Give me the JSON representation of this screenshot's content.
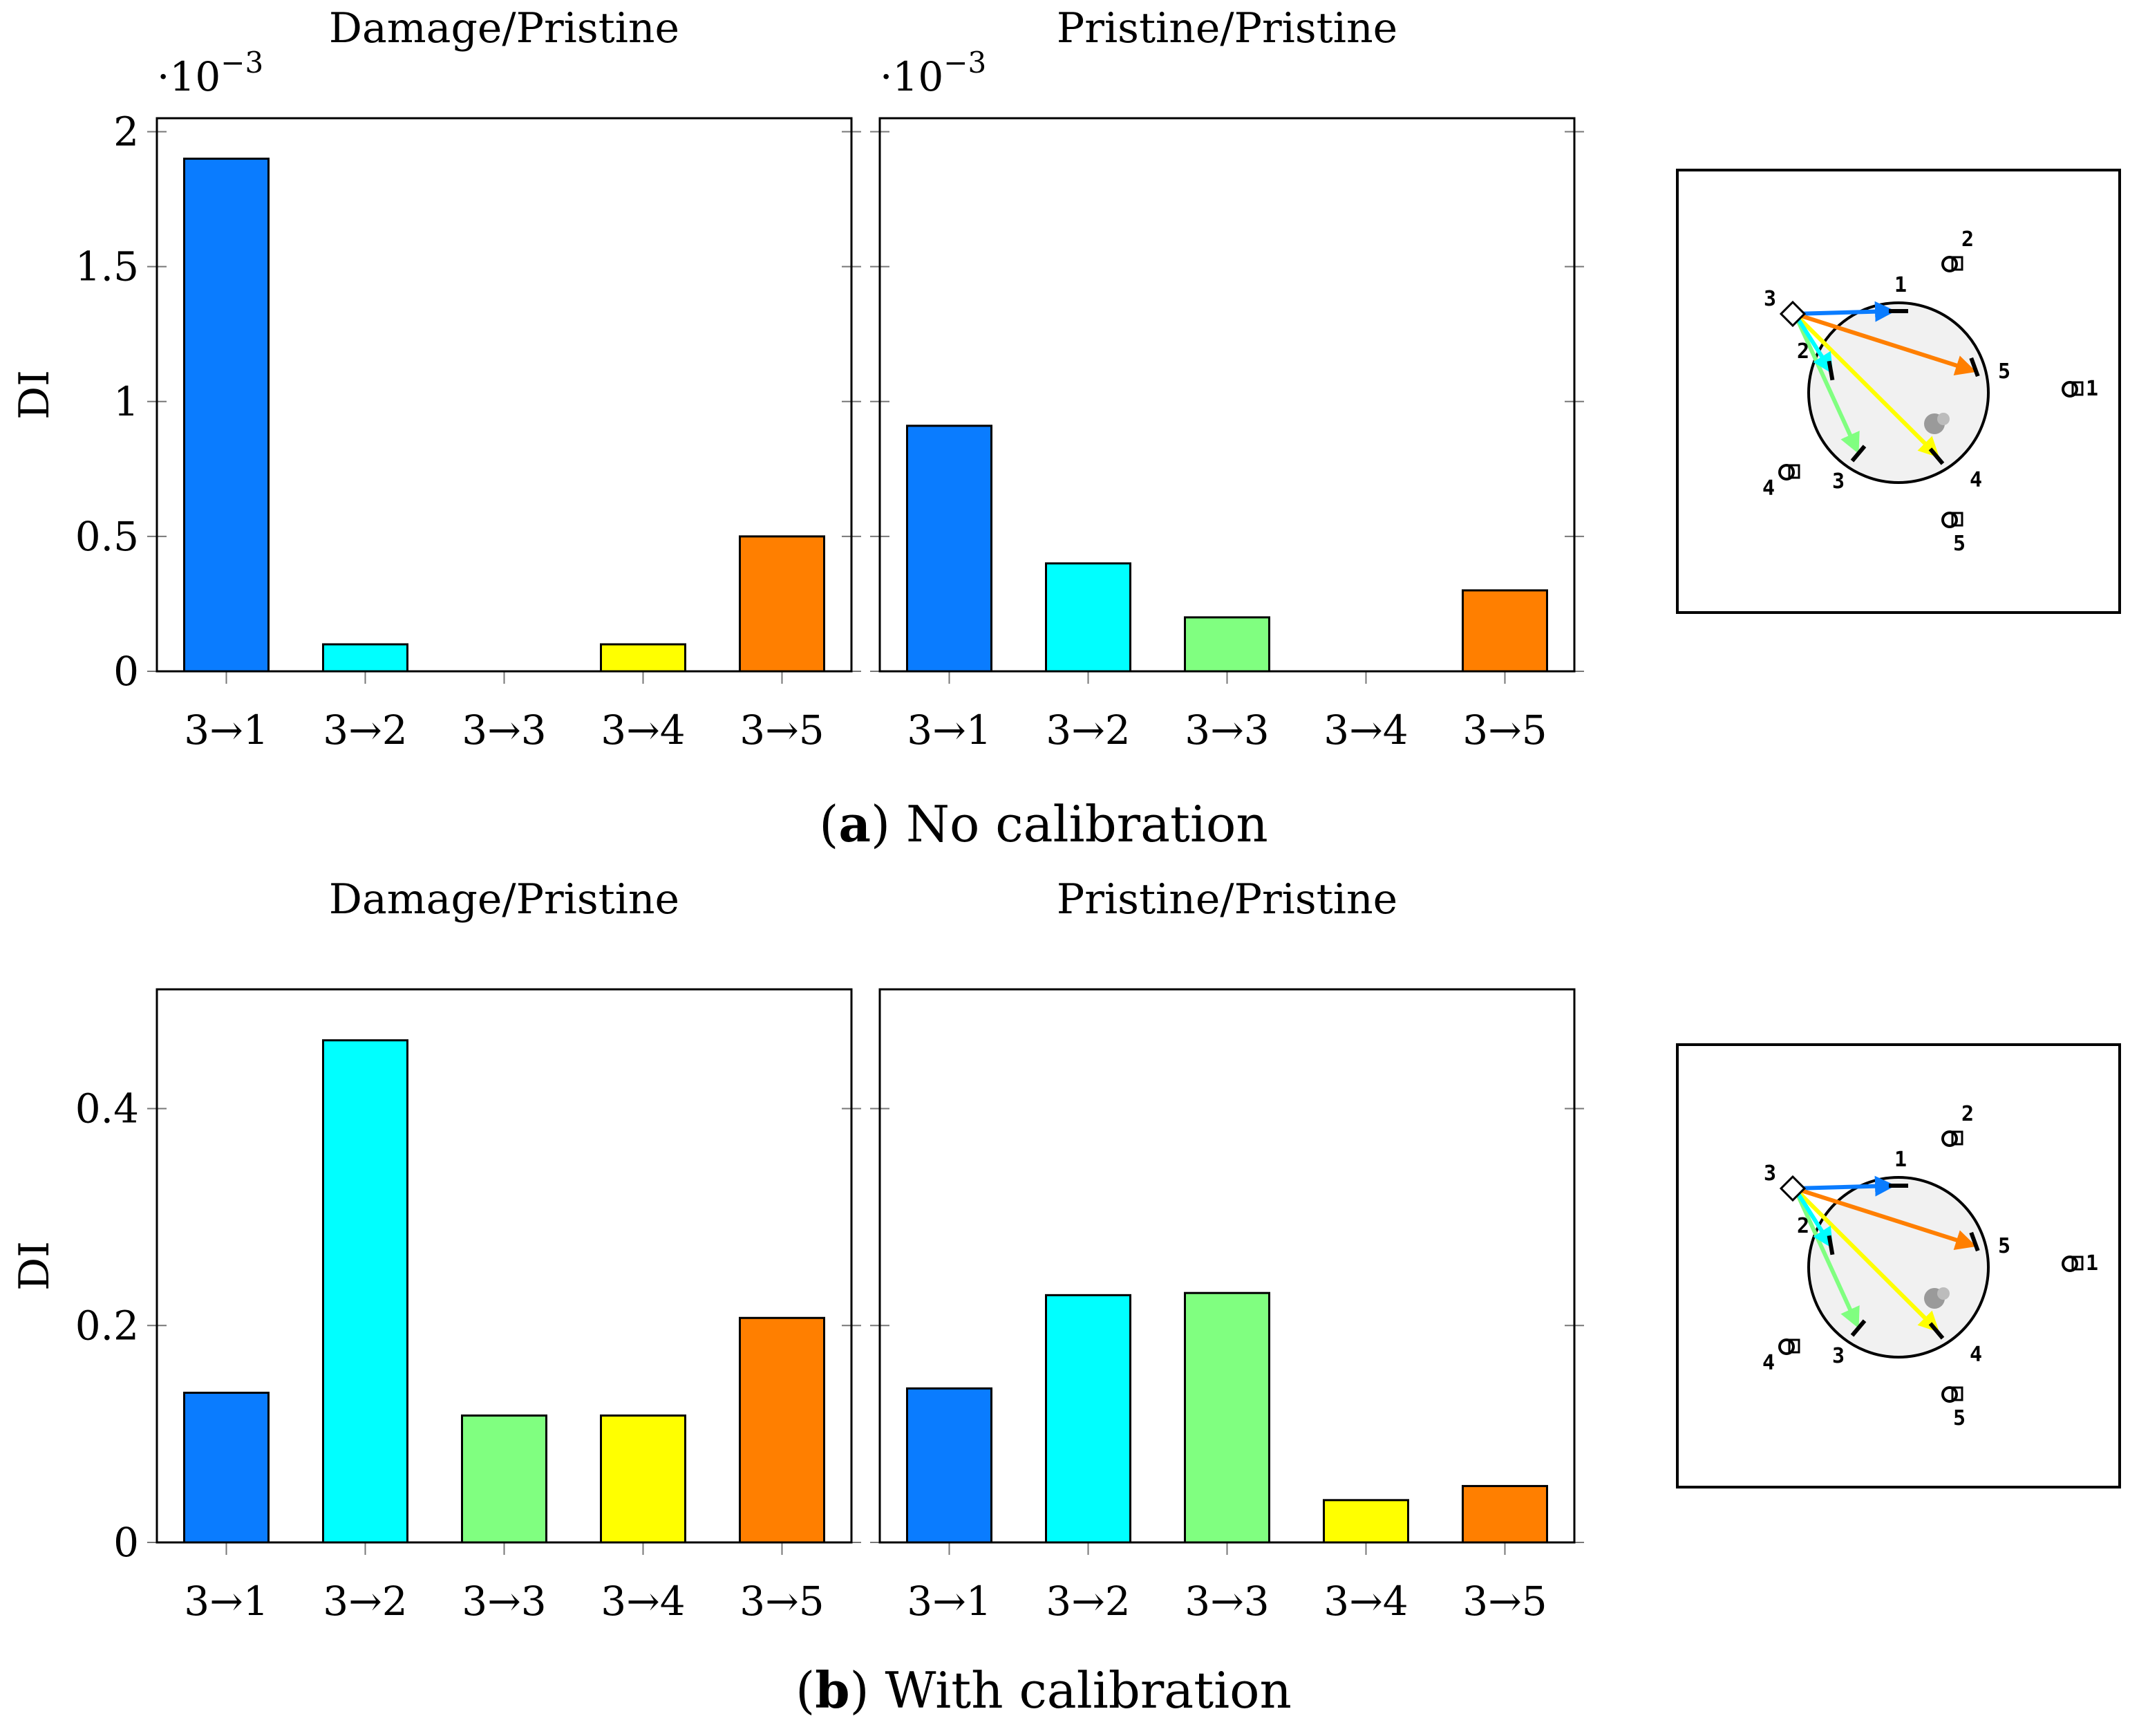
{
  "figure": {
    "colors": {
      "3→1": "#0a7cff",
      "3→2": "#00ffff",
      "3→3": "#80ff80",
      "3→4": "#ffff00",
      "3→5": "#ff7f00"
    },
    "diagram": {
      "transmitter_label": "3",
      "receiver_labels": [
        "1",
        "2",
        "3",
        "4",
        "5"
      ],
      "outer_labels": [
        "1",
        "2",
        "4",
        "5"
      ]
    }
  },
  "chart_data": [
    {
      "type": "bar",
      "panel": "a",
      "title": "Damage/Pristine",
      "caption_letter": "a",
      "caption_text": "No calibration",
      "ylabel": "DI",
      "multiplier_base": "·10",
      "multiplier_exp": "−3",
      "categories": [
        "3→1",
        "3→2",
        "3→3",
        "3→4",
        "3→5"
      ],
      "values": [
        1.9,
        0.1,
        0.0,
        0.1,
        0.5
      ],
      "ylim": [
        0,
        2.05
      ],
      "yticks": [
        0,
        0.5,
        1,
        1.5,
        2
      ],
      "ytick_labels": [
        "0",
        "0.5",
        "1",
        "1.5",
        "2"
      ]
    },
    {
      "type": "bar",
      "panel": "a",
      "title": "Pristine/Pristine",
      "ylabel": "",
      "multiplier_base": "·10",
      "multiplier_exp": "−3",
      "categories": [
        "3→1",
        "3→2",
        "3→3",
        "3→4",
        "3→5"
      ],
      "values": [
        0.91,
        0.4,
        0.2,
        0.0,
        0.3
      ],
      "ylim": [
        0,
        2.05
      ],
      "yticks": [
        0,
        0.5,
        1,
        1.5,
        2
      ],
      "ytick_labels": []
    },
    {
      "type": "bar",
      "panel": "b",
      "title": "Damage/Pristine",
      "caption_letter": "b",
      "caption_text": "With calibration",
      "ylabel": "DI",
      "categories": [
        "3→1",
        "3→2",
        "3→3",
        "3→4",
        "3→5"
      ],
      "values": [
        0.138,
        0.463,
        0.117,
        0.117,
        0.207
      ],
      "ylim": [
        0,
        0.51
      ],
      "yticks": [
        0,
        0.2,
        0.4
      ],
      "ytick_labels": [
        "0",
        "0.2",
        "0.4"
      ]
    },
    {
      "type": "bar",
      "panel": "b",
      "title": "Pristine/Pristine",
      "ylabel": "",
      "categories": [
        "3→1",
        "3→2",
        "3→3",
        "3→4",
        "3→5"
      ],
      "values": [
        0.142,
        0.228,
        0.23,
        0.039,
        0.052
      ],
      "ylim": [
        0,
        0.51
      ],
      "yticks": [
        0,
        0.2,
        0.4
      ],
      "ytick_labels": []
    }
  ]
}
